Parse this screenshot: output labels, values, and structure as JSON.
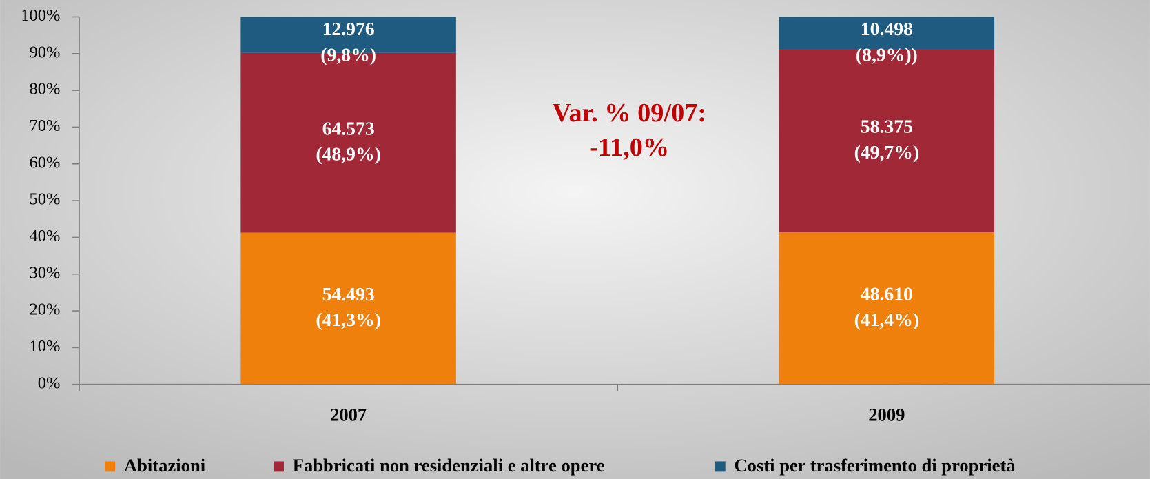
{
  "chart_data": {
    "type": "stacked_bar",
    "categories": [
      "2007",
      "2009"
    ],
    "series": [
      {
        "name": "Abitazioni",
        "color": "#f0800c",
        "values": [
          41.3,
          41.4
        ],
        "value_labels": [
          [
            "54.493",
            "(41,3%)"
          ],
          [
            "48.610",
            "(41,4%)"
          ]
        ]
      },
      {
        "name": "Fabbricati non residenziali e altre opere",
        "color": "#a02837",
        "values": [
          48.9,
          49.7
        ],
        "value_labels": [
          [
            "64.573",
            "(48,9%)"
          ],
          [
            "58.375",
            "(49,7%)"
          ]
        ]
      },
      {
        "name": "Costi per trasferimento di proprietà",
        "color": "#1f5a80",
        "values": [
          9.8,
          8.9
        ],
        "value_labels": [
          [
            "12.976",
            "(9,8%)"
          ],
          [
            "10.498",
            "(8,9%))"
          ]
        ]
      }
    ],
    "annotation": [
      "Var. % 09/07:",
      "-11,0%"
    ],
    "ylim": [
      0,
      100
    ],
    "yticks": [
      {
        "value": 0,
        "label": "0%"
      },
      {
        "value": 10,
        "label": "10%"
      },
      {
        "value": 20,
        "label": "20%"
      },
      {
        "value": 30,
        "label": "30%"
      },
      {
        "value": 40,
        "label": "40%"
      },
      {
        "value": 50,
        "label": "50%"
      },
      {
        "value": 60,
        "label": "60%"
      },
      {
        "value": 70,
        "label": "70%"
      },
      {
        "value": 80,
        "label": "80%"
      },
      {
        "value": 90,
        "label": "90%"
      },
      {
        "value": 100,
        "label": "100%"
      }
    ],
    "legend": "bottom"
  }
}
